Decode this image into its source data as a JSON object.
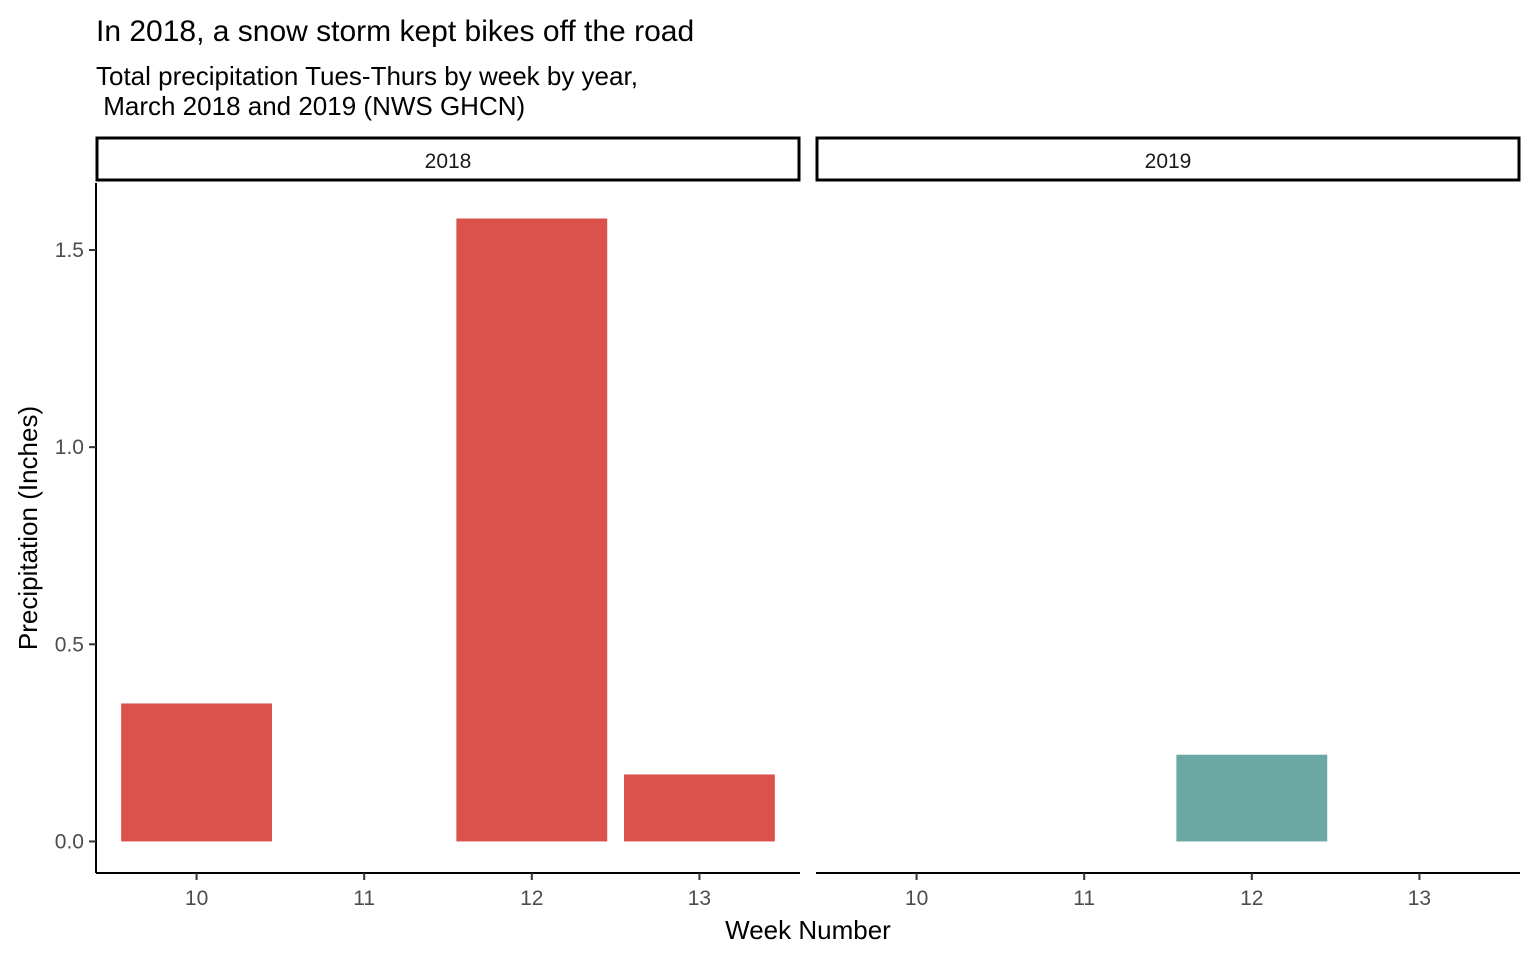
{
  "chart_data": {
    "type": "bar",
    "title": "In 2018, a snow storm kept bikes off the road",
    "subtitle_lines": [
      "Total precipitation Tues-Thurs by week by year,",
      " March 2018 and 2019 (NWS GHCN)"
    ],
    "xlabel": "Week Number",
    "ylabel": "Precipitation (Inches)",
    "categories": [
      "10",
      "11",
      "12",
      "13"
    ],
    "ylim": [
      -0.08,
      1.67
    ],
    "yticks": [
      0.0,
      0.5,
      1.0,
      1.5
    ],
    "ytick_labels": [
      "0.0",
      "0.5",
      "1.0",
      "1.5"
    ],
    "grid": false,
    "legend": "none",
    "facets": [
      {
        "label": "2018",
        "color": "#DB524D",
        "values": [
          0.35,
          null,
          1.58,
          0.17
        ]
      },
      {
        "label": "2019",
        "color": "#6BA8A3",
        "values": [
          null,
          null,
          0.22,
          null
        ]
      }
    ]
  }
}
